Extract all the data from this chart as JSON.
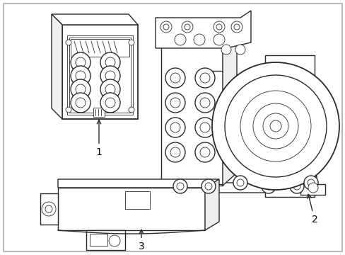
{
  "background_color": "#ffffff",
  "line_color": "#2a2a2a",
  "label_color": "#000000",
  "fig_width": 4.89,
  "fig_height": 3.6,
  "dpi": 100,
  "labels": [
    "1",
    "2",
    "3"
  ],
  "font_size": 10,
  "lw_main": 1.0,
  "lw_thin": 0.6,
  "lw_thick": 1.3
}
